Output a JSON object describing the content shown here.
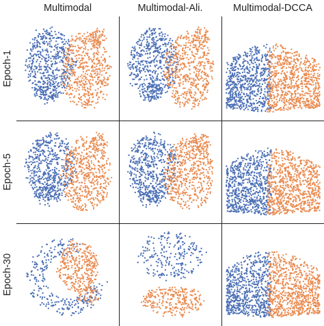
{
  "columns": [
    "Multimodal",
    "Multimodal-Ali.",
    "Multimodal-DCCA"
  ],
  "rows": [
    "Epoch-1",
    "Epoch-5",
    "Epoch-30"
  ],
  "colors": {
    "modality_a": "#4a6fb5",
    "modality_b": "#e98b50",
    "grid_line": "#1f1f1f"
  },
  "panels": [
    {
      "row": 0,
      "col": 0,
      "pattern": "split-left-right"
    },
    {
      "row": 0,
      "col": 1,
      "pattern": "split-left-right"
    },
    {
      "row": 0,
      "col": 2,
      "pattern": "crescent"
    },
    {
      "row": 1,
      "col": 0,
      "pattern": "split-left-right"
    },
    {
      "row": 1,
      "col": 1,
      "pattern": "split-left-right"
    },
    {
      "row": 1,
      "col": 2,
      "pattern": "crescent"
    },
    {
      "row": 2,
      "col": 0,
      "pattern": "ring-vs-center"
    },
    {
      "row": 2,
      "col": 1,
      "pattern": "top-vs-bottom"
    },
    {
      "row": 2,
      "col": 2,
      "pattern": "crescent"
    }
  ]
}
